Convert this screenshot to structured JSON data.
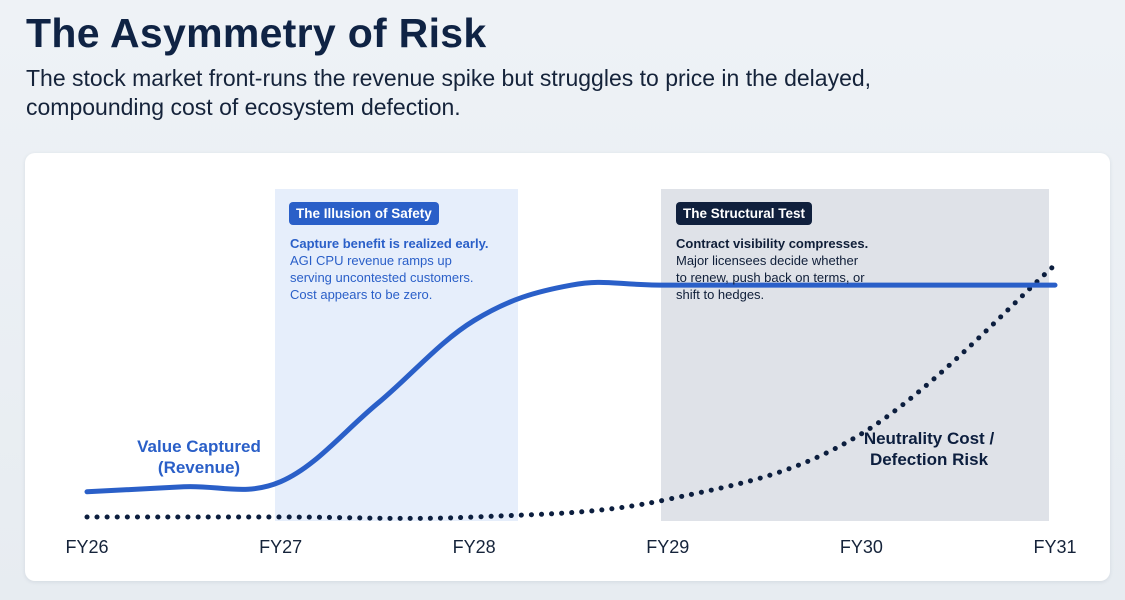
{
  "header": {
    "title": "The Asymmetry of Risk",
    "subtitle": "The stock market front-runs the revenue spike but struggles to price in the delayed, compounding cost of ecosystem defection."
  },
  "colors": {
    "revenue_line": "#2a5fc8",
    "cost_line": "#0c1e3e",
    "illusion_band": "#e6eefb",
    "structural_band": "#dfe2e8",
    "illusion_badge": "#2a5fc8",
    "structural_badge": "#10203d"
  },
  "callouts": {
    "illusion": {
      "badge": "The Illusion of Safety",
      "headline": "Capture benefit is realized early.",
      "lines": [
        "AGI CPU revenue ramps up",
        "serving uncontested customers.",
        "Cost appears to be zero."
      ]
    },
    "structural": {
      "badge": "The Structural Test",
      "headline": "Contract visibility compresses.",
      "lines": [
        "Major licensees decide whether",
        "to renew, push back on terms, or",
        "shift to hedges."
      ]
    }
  },
  "chart_data": {
    "type": "line",
    "x_categories": [
      "FY26",
      "FY27",
      "FY28",
      "FY29",
      "FY30",
      "FY31"
    ],
    "shaded_regions": [
      {
        "label": "The Illusion of Safety",
        "from": "FY27",
        "to": "FY28+"
      },
      {
        "label": "The Structural Test",
        "from": "FY29",
        "to": "FY31"
      }
    ],
    "series": [
      {
        "name": "Value Captured (Revenue)",
        "label_lines": [
          "Value Captured",
          "(Revenue)"
        ],
        "style": "solid",
        "points": [
          [
            0,
            0.1
          ],
          [
            0.5,
            0.12
          ],
          [
            1.0,
            0.14
          ],
          [
            1.5,
            0.45
          ],
          [
            2.0,
            0.78
          ],
          [
            2.5,
            0.92
          ],
          [
            3.0,
            0.92
          ],
          [
            4.0,
            0.92
          ],
          [
            5.0,
            0.92
          ]
        ]
      },
      {
        "name": "Neutrality Cost / Defection Risk",
        "label_lines": [
          "Neutrality Cost /",
          "Defection Risk"
        ],
        "style": "dotted",
        "points": [
          [
            0,
            0.0
          ],
          [
            1.0,
            0.0
          ],
          [
            2.0,
            0.0
          ],
          [
            3.0,
            0.07
          ],
          [
            4.0,
            0.33
          ],
          [
            5.0,
            1.0
          ]
        ]
      }
    ]
  }
}
